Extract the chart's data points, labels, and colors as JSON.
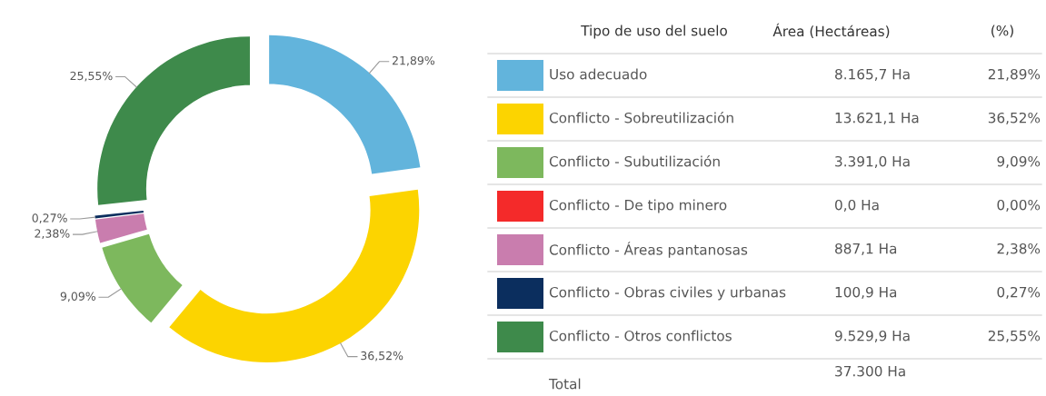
{
  "chart_data": [
    {
      "type": "donut",
      "categories": [
        "Uso adecuado",
        "Conflicto - Sobreutilización",
        "Conflicto - Subutilización",
        "Conflicto - De tipo minero",
        "Conflicto - Áreas pantanosas",
        "Conflicto - Obras civiles y urbanas",
        "Conflicto - Otros conflictos"
      ],
      "values": [
        21.89,
        36.52,
        9.09,
        0.0,
        2.38,
        0.27,
        25.55
      ],
      "colors": [
        "#62b4dc",
        "#fcd400",
        "#7db85d",
        "#f42a2a",
        "#c97dae",
        "#0b2e5e",
        "#3e8a4b"
      ],
      "value_labels": [
        "21,89%",
        "36,52%",
        "9,09%",
        null,
        "2,38%",
        "0,27%",
        "25,55%"
      ],
      "legend": "right"
    },
    {
      "type": "other",
      "annotations": [
        "Tipo de uso del suelo",
        "Área (Hectáreas)",
        "(%)",
        "8.165,7 Ha",
        "21,89%",
        "13.621,1 Ha",
        "36,52%",
        "3.391,0 Ha",
        "9,09%",
        "0,0 Ha",
        "0,00%",
        "887,1 Ha",
        "2,38%",
        "100,9 Ha",
        "0,27%",
        "9.529,9 Ha",
        "25,55%",
        "Total",
        "37.300 Ha"
      ]
    }
  ]
}
